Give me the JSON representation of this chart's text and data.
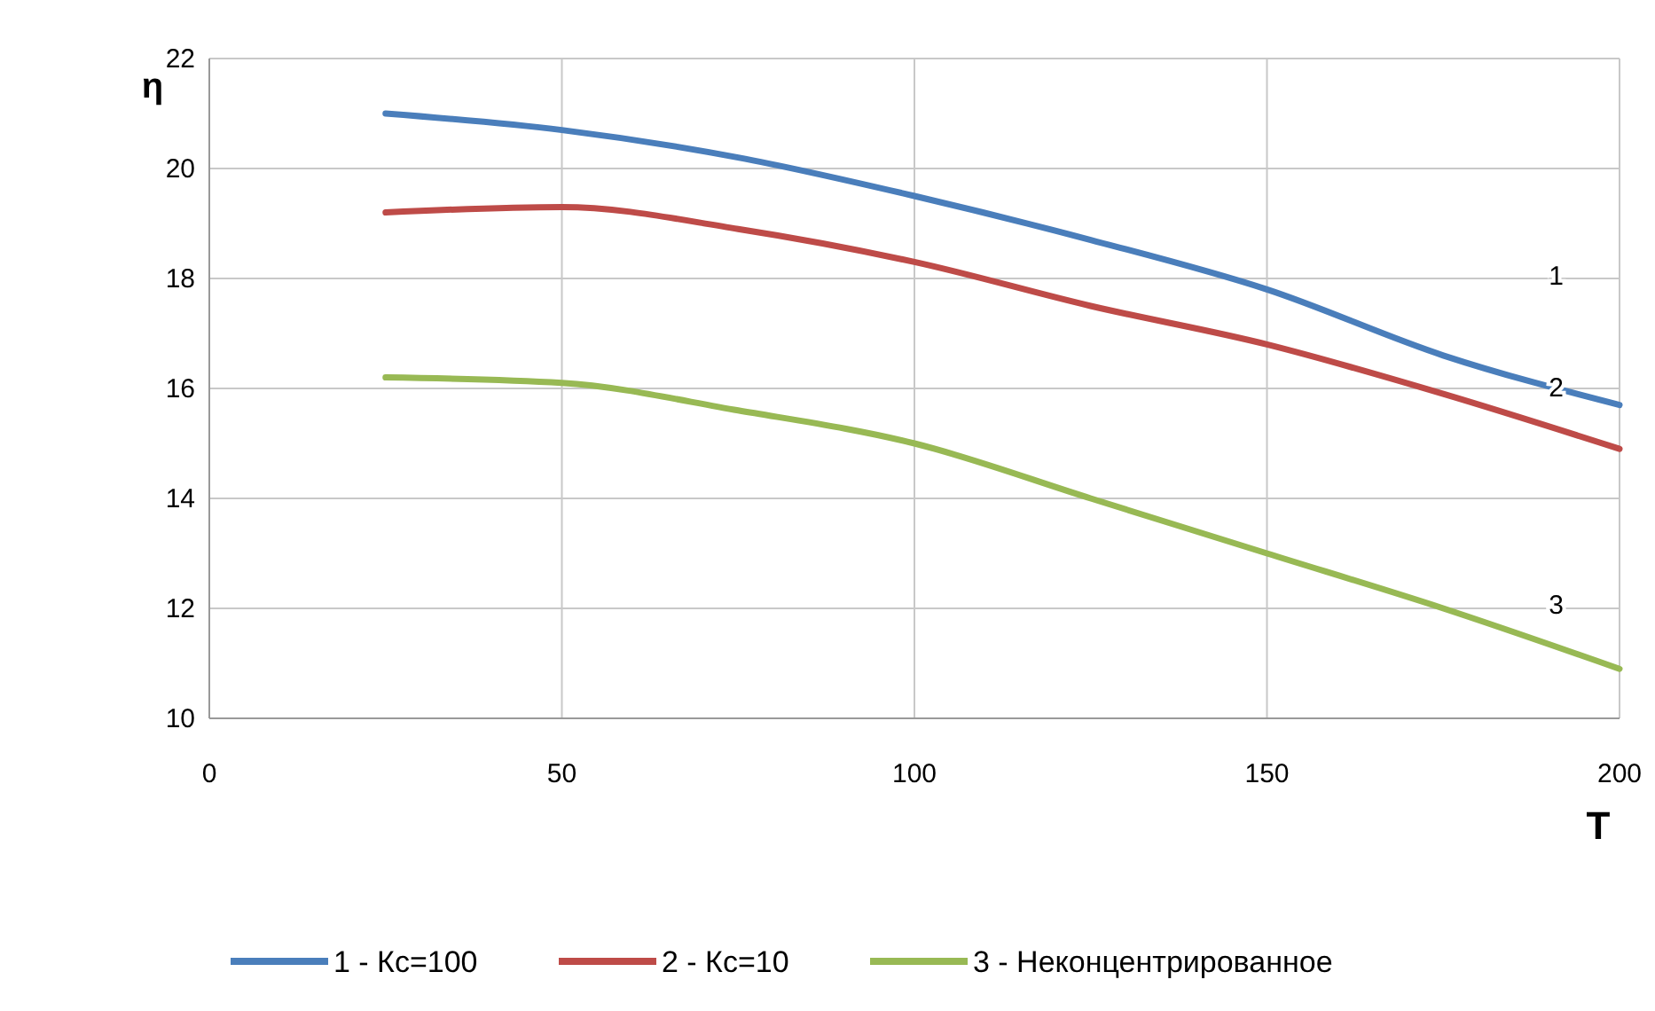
{
  "chart_data": {
    "type": "line",
    "xlabel": "T",
    "ylabel": "η",
    "x": [
      25,
      50,
      75,
      100,
      125,
      150,
      175,
      200
    ],
    "series": [
      {
        "name": "1 - Кс=100",
        "color": "#4a7ebb",
        "values": [
          21.0,
          20.7,
          20.2,
          19.5,
          18.7,
          17.8,
          16.6,
          15.7
        ]
      },
      {
        "name": "2 - Кс=10",
        "color": "#be4b48",
        "values": [
          19.2,
          19.3,
          18.9,
          18.3,
          17.5,
          16.8,
          15.9,
          14.9
        ]
      },
      {
        "name": "3 - Неконцентрированное",
        "color": "#98b954",
        "values": [
          16.2,
          16.1,
          15.6,
          15.0,
          14.0,
          13.0,
          12.0,
          10.9
        ]
      }
    ],
    "xlim": [
      0,
      200
    ],
    "xticks": [
      0,
      50,
      100,
      150,
      200
    ],
    "ylim": [
      10,
      22
    ],
    "yticks": [
      10,
      12,
      14,
      16,
      18,
      20,
      22
    ],
    "grid": true,
    "legend": "bottom",
    "marker": "none",
    "line_style": "solid",
    "annotations": [
      "1",
      "2",
      "3"
    ]
  }
}
